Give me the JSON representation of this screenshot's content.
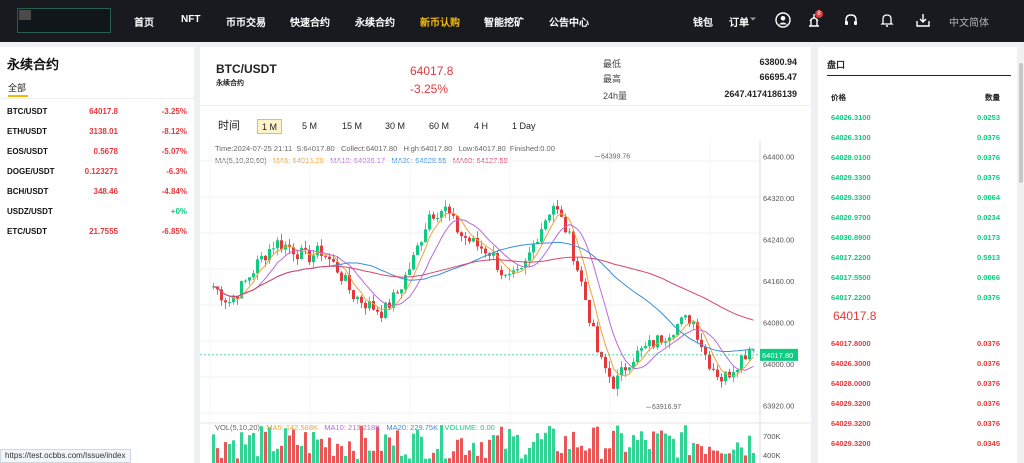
{
  "nav": {
    "items": [
      "首页",
      "NFT",
      "币币交易",
      "快速合约",
      "永续合约",
      "新币认购",
      "智能挖矿",
      "公告中心"
    ],
    "active_index": 5,
    "wallet": "钱包",
    "orders": "订单",
    "notification_count": "8",
    "language": "中文简体"
  },
  "left_panel": {
    "title": "永续合约",
    "tab": "全部",
    "rows": [
      {
        "symbol": "BTC/USDT",
        "price": "64017.8",
        "change": "-3.25%",
        "up": false
      },
      {
        "symbol": "ETH/USDT",
        "price": "3138.01",
        "change": "-8.12%",
        "up": false
      },
      {
        "symbol": "EOS/USDT",
        "price": "0.5678",
        "change": "-5.07%",
        "up": false
      },
      {
        "symbol": "DOGE/USDT",
        "price": "0.123271",
        "change": "-6.3%",
        "up": false
      },
      {
        "symbol": "BCH/USDT",
        "price": "348.46",
        "change": "-4.84%",
        "up": false
      },
      {
        "symbol": "USDZ/USDT",
        "price": "",
        "change": "+0%",
        "up": true
      },
      {
        "symbol": "ETC/USDT",
        "price": "21.7555",
        "change": "-6.85%",
        "up": false
      }
    ]
  },
  "ticker": {
    "pair": "BTC/USDT",
    "subtitle": "永续合约",
    "last_price": "64017.8",
    "change": "-3.25%",
    "low_label": "最低",
    "low": "63800.94",
    "high_label": "最高",
    "high": "66695.47",
    "vol_label": "24h量",
    "vol": "2647.4174186139"
  },
  "timeframes": {
    "label": "时间",
    "items": [
      "1 M",
      "5 M",
      "15 M",
      "30 M",
      "60 M",
      "4 H",
      "1 Day"
    ],
    "active_index": 0
  },
  "chart_info": {
    "ohlc": [
      "Time:2024-07-25 21:11",
      "S:64017.80",
      "Collect:64017.80",
      "High:64017.80",
      "Low:64017.80",
      "Finished:0.00"
    ],
    "ma": [
      "MA(5,10,30,60)",
      "MA5: 64015.28",
      "MA10: 64036.17",
      "MA30: 64028.55",
      "MA60: 64127.59"
    ],
    "vol": [
      "VOL(5,10,20)",
      "MA5: 142.568K",
      "MA10: 213.218K",
      "MA20: 229.75K",
      "VOLUME: 0.00"
    ]
  },
  "colors": {
    "up": "#0ecb81",
    "down": "#e5383b",
    "ma5": "#f0a33a",
    "ma10": "#b86cd8",
    "ma30": "#3a8fdc",
    "ma60": "#d9466b",
    "accent": "#f0b90b"
  },
  "chart_data": {
    "type": "candlestick",
    "y_ticks": [
      "64400.00",
      "64320.00",
      "64240.00",
      "64160.00",
      "64080.00",
      "64000.00",
      "63920.00"
    ],
    "ylim": [
      63900,
      64430
    ],
    "high_marker": "64399.76",
    "low_marker": "63916.97",
    "last_price_tag": "64017.80",
    "vol_ticks": [
      "700K",
      "400K"
    ]
  },
  "order_book": {
    "title": "盘口",
    "price_header": "价格",
    "qty_header": "数量",
    "buys": [
      [
        "64026.3100",
        "0.0253"
      ],
      [
        "64026.3100",
        "0.0376"
      ],
      [
        "64028.0100",
        "0.0376"
      ],
      [
        "64029.3300",
        "0.0376"
      ],
      [
        "64029.3300",
        "0.0064"
      ],
      [
        "64020.9700",
        "0.0234"
      ],
      [
        "64030.8900",
        "0.0173"
      ],
      [
        "64017.2200",
        "0.5913"
      ],
      [
        "64017.5500",
        "0.0066"
      ],
      [
        "64017.2200",
        "0.0376"
      ]
    ],
    "mid_price": "64017.8",
    "sells": [
      [
        "64017.8000",
        "0.0376"
      ],
      [
        "64026.3000",
        "0.0376"
      ],
      [
        "64028.0000",
        "0.0376"
      ],
      [
        "64029.3200",
        "0.0376"
      ],
      [
        "64029.3200",
        "0.0376"
      ],
      [
        "64029.3200",
        "0.0345"
      ]
    ]
  },
  "status_url": "https://test.ocbbs.com/Issue/index"
}
